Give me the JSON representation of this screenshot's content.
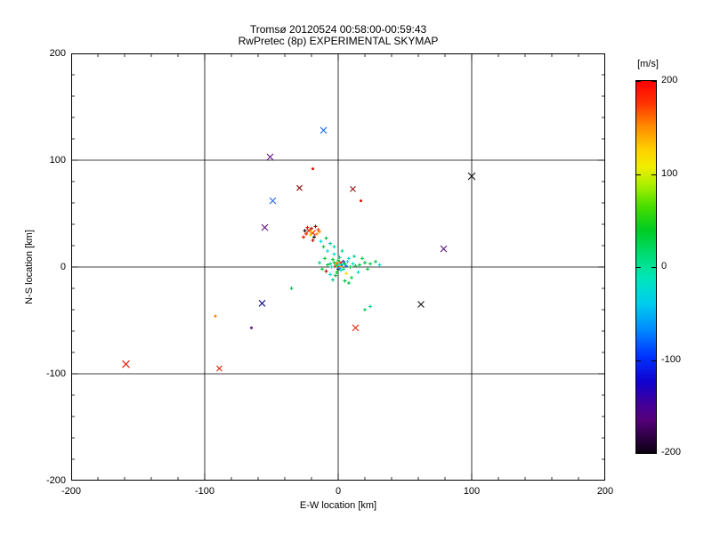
{
  "chart_data": {
    "type": "scatter",
    "title": "Tromsø 20120524 00:58:00-00:59:43",
    "subtitle": "RwPretec (8p) EXPERIMENTAL SKYMAP",
    "xlabel": "E-W location [km]",
    "ylabel": "N-S location [km]",
    "xlim": [
      -200,
      200
    ],
    "ylim": [
      -200,
      200
    ],
    "xticks": [
      -200,
      -100,
      0,
      100,
      200
    ],
    "yticks": [
      -200,
      -100,
      0,
      100,
      200
    ],
    "minor_tick_step": 20,
    "grid": true,
    "legend": "none",
    "colorbar": {
      "label": "[m/s]",
      "range": [
        -200,
        200
      ],
      "ticks": [
        200,
        100,
        0,
        -100,
        -200
      ],
      "gradient": [
        [
          "#ff0000",
          0
        ],
        [
          "#ff3300",
          6
        ],
        [
          "#ff8800",
          12
        ],
        [
          "#ffcc00",
          18
        ],
        [
          "#f2ee00",
          23
        ],
        [
          "#aaee00",
          28
        ],
        [
          "#44dd00",
          34
        ],
        [
          "#00cc22",
          40
        ],
        [
          "#00dd77",
          47
        ],
        [
          "#00e6bb",
          53
        ],
        [
          "#00ccee",
          60
        ],
        [
          "#0088ff",
          67
        ],
        [
          "#0033ff",
          74
        ],
        [
          "#1100cc",
          81
        ],
        [
          "#440099",
          87
        ],
        [
          "#55007a",
          91
        ],
        [
          "#2a0040",
          96
        ],
        [
          "#0d0012",
          100
        ]
      ]
    },
    "points_format": [
      "x_km",
      "y_km",
      "color",
      "marker",
      "half_size_px"
    ],
    "points": [
      [
        -159,
        -91,
        "#ee1100",
        "x",
        4
      ],
      [
        -89,
        -95,
        "#dd2200",
        "x",
        3
      ],
      [
        -92,
        -46,
        "#ff8800",
        ".",
        1.5
      ],
      [
        -65,
        -57,
        "#661188",
        ".",
        1.5
      ],
      [
        -57,
        -34,
        "#111188",
        "x",
        3.5
      ],
      [
        -51,
        103,
        "#661188",
        "x",
        3.5
      ],
      [
        -49,
        62,
        "#2266ee",
        "x",
        3.5
      ],
      [
        -55,
        37,
        "#661188",
        "x",
        3.5
      ],
      [
        -29,
        74,
        "#881111",
        "x",
        3
      ],
      [
        -11,
        128,
        "#1166ee",
        "x",
        3.5
      ],
      [
        -19,
        92,
        "#ee1100",
        ".",
        1.5
      ],
      [
        11,
        73,
        "#881111",
        "x",
        3
      ],
      [
        17,
        62,
        "#ee1100",
        ".",
        1.5
      ],
      [
        13,
        -57,
        "#ee2200",
        "x",
        3.5
      ],
      [
        62,
        -35,
        "#111111",
        "x",
        3.5
      ],
      [
        79,
        17,
        "#551177",
        "x",
        3.5
      ],
      [
        100,
        85,
        "#111111",
        "x",
        4
      ],
      [
        -35,
        -20,
        "#00bb44",
        "+",
        2
      ],
      [
        20,
        -40,
        "#00cc55",
        "+",
        2
      ],
      [
        24,
        -37,
        "#00cc88",
        "+",
        2
      ],
      [
        -19,
        32,
        "#ff1100",
        "x",
        3
      ],
      [
        -22,
        34,
        "#ee2200",
        "x",
        2.5
      ],
      [
        -16,
        31,
        "#ff8800",
        "+",
        2
      ],
      [
        -20,
        36,
        "#aa1100",
        "+",
        2
      ],
      [
        -24,
        31,
        "#ff2200",
        "+",
        2
      ],
      [
        -18,
        28,
        "#111111",
        "+",
        2
      ],
      [
        -15,
        35,
        "#ff3300",
        "+",
        2
      ],
      [
        -21,
        30,
        "#eedd00",
        "+",
        2
      ],
      [
        -17,
        38,
        "#881111",
        "+",
        2
      ],
      [
        -23,
        37,
        "#ff1100",
        "+",
        2
      ],
      [
        -25,
        34,
        "#111111",
        "+",
        2
      ],
      [
        -14,
        33,
        "#ff8800",
        "+",
        2
      ],
      [
        -19,
        25,
        "#aa1100",
        "+",
        2
      ],
      [
        -26,
        28,
        "#ee1100",
        "+",
        2
      ],
      [
        -20,
        33,
        "#ffdd00",
        "+",
        2
      ],
      [
        -8,
        15,
        "#00ddcc",
        "+",
        2
      ],
      [
        -11,
        19,
        "#00cc44",
        "+",
        2
      ],
      [
        -6,
        22,
        "#00cc99",
        "+",
        2
      ],
      [
        -13,
        24,
        "#00ddcc",
        "+",
        2
      ],
      [
        -9,
        27,
        "#00bb44",
        "+",
        2
      ],
      [
        -3,
        19,
        "#00ddaa",
        "+",
        2
      ],
      [
        0,
        2,
        "#ff1100",
        "x",
        3
      ],
      [
        2,
        4,
        "#ee2200",
        "x",
        2.5
      ],
      [
        -2,
        1,
        "#ff3300",
        "+",
        2
      ],
      [
        1,
        0,
        "#eedd00",
        "+",
        2
      ],
      [
        3,
        2,
        "#00ddcc",
        "+",
        2
      ],
      [
        -3,
        4,
        "#00cc33",
        "+",
        2
      ],
      [
        5,
        3,
        "#00cc33",
        "+",
        2
      ],
      [
        -5,
        0,
        "#00ddcc",
        "+",
        2
      ],
      [
        0,
        6,
        "#00cc33",
        "+",
        2
      ],
      [
        2,
        -3,
        "#00ddcc",
        "+",
        2
      ],
      [
        -1,
        -5,
        "#00cc33",
        "+",
        2
      ],
      [
        4,
        -2,
        "#00cc88",
        "+",
        2
      ],
      [
        6,
        1,
        "#2277ff",
        "+",
        2
      ],
      [
        -6,
        3,
        "#00cc88",
        "+",
        2
      ],
      [
        -4,
        7,
        "#00cc33",
        "+",
        2
      ],
      [
        7,
        5,
        "#00ddcc",
        "+",
        2
      ],
      [
        1,
        9,
        "#00cc88",
        "+",
        2
      ],
      [
        -8,
        2,
        "#00cc33",
        "+",
        2
      ],
      [
        9,
        0,
        "#00cc33",
        "+",
        2
      ],
      [
        -2,
        -8,
        "#00bb44",
        "+",
        2
      ],
      [
        11,
        3,
        "#00ddcc",
        "+",
        2
      ],
      [
        13,
        1,
        "#00cc44",
        "+",
        2
      ],
      [
        16,
        2,
        "#00cc44",
        "+",
        2
      ],
      [
        20,
        4,
        "#00bb44",
        "+",
        2
      ],
      [
        24,
        3,
        "#00cc44",
        "+",
        2
      ],
      [
        15,
        -5,
        "#00ddcc",
        "+",
        2
      ],
      [
        10,
        -10,
        "#00cc44",
        "+",
        2
      ],
      [
        5,
        -13,
        "#00bb44",
        "+",
        2
      ],
      [
        -9,
        -4,
        "#aa1100",
        "+",
        2
      ],
      [
        -12,
        -2,
        "#00cc44",
        "+",
        2
      ],
      [
        8,
        8,
        "#00ddcc",
        "+",
        2
      ],
      [
        12,
        10,
        "#00cc88",
        "+",
        2
      ],
      [
        -3,
        12,
        "#00ddcc",
        "+",
        2
      ],
      [
        3,
        15,
        "#00cc88",
        "+",
        2
      ],
      [
        18,
        8,
        "#00cc44",
        "+",
        2
      ],
      [
        0,
        -2,
        "#111111",
        "+",
        2
      ],
      [
        -1,
        3,
        "#ff8800",
        "+",
        2
      ],
      [
        2,
        1,
        "#661188",
        "+",
        2
      ],
      [
        4,
        5,
        "#1144dd",
        "+",
        2
      ],
      [
        6,
        -6,
        "#eedd00",
        "+",
        2
      ],
      [
        -6,
        -7,
        "#00ddcc",
        "+",
        2
      ],
      [
        -10,
        8,
        "#00cc44",
        "+",
        2
      ],
      [
        -14,
        4,
        "#00cc88",
        "+",
        2
      ],
      [
        22,
        -2,
        "#00cc44",
        "+",
        2
      ],
      [
        8,
        -15,
        "#00bb44",
        "+",
        2
      ],
      [
        -4,
        -12,
        "#00cc88",
        "+",
        2
      ],
      [
        28,
        5,
        "#00cc44",
        "+",
        2
      ],
      [
        31,
        2,
        "#00ddcc",
        "+",
        2
      ],
      [
        0,
        1,
        "#ff2200",
        ".",
        1.5
      ],
      [
        1,
        2,
        "#00ffee",
        ".",
        1.5
      ],
      [
        -1,
        1,
        "#00ee66",
        ".",
        1.5
      ],
      [
        2,
        0,
        "#ffaa00",
        ".",
        1.5
      ],
      [
        1,
        -1,
        "#2299ff",
        ".",
        1.5
      ]
    ]
  }
}
